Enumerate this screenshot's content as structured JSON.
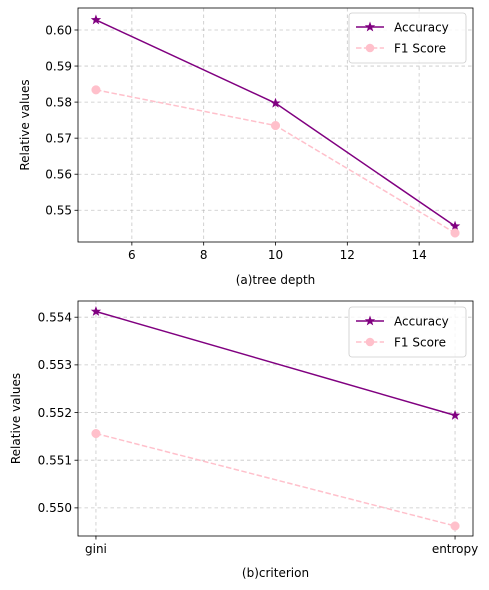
{
  "chart_data": [
    {
      "type": "line",
      "xlabel": "(a)tree depth",
      "ylabel": "Relative values",
      "x": [
        5,
        10,
        15
      ],
      "xlim": [
        4.5,
        15.5
      ],
      "ylim": [
        0.5412,
        0.6061
      ],
      "xticks": [
        6,
        8,
        10,
        12,
        14
      ],
      "yticks": [
        0.55,
        0.56,
        0.57,
        0.58,
        0.59,
        0.6
      ],
      "tick_labels_x": [
        "6",
        "8",
        "10",
        "12",
        "14"
      ],
      "tick_labels_y": [
        "0.55",
        "0.56",
        "0.57",
        "0.58",
        "0.59",
        "0.60"
      ],
      "grid": true,
      "legend_position": "top-right",
      "series": [
        {
          "name": "Accuracy",
          "values": [
            0.6028,
            0.5797,
            0.5456
          ],
          "color": "#800080",
          "marker": "star",
          "linestyle": "solid"
        },
        {
          "name": "F1 Score",
          "values": [
            0.5834,
            0.5735,
            0.5437
          ],
          "color": "#ffc0cb",
          "marker": "circle",
          "linestyle": "dashed"
        }
      ]
    },
    {
      "type": "line",
      "xlabel": "(b)criterion",
      "ylabel": "Relative values",
      "categories": [
        "gini",
        "entropy"
      ],
      "ylim": [
        0.54941,
        0.55434
      ],
      "yticks": [
        0.55,
        0.551,
        0.552,
        0.553,
        0.554
      ],
      "tick_labels_x": [
        "gini",
        "entropy"
      ],
      "tick_labels_y": [
        "0.550",
        "0.551",
        "0.552",
        "0.553",
        "0.554"
      ],
      "grid": true,
      "legend_position": "top-right",
      "series": [
        {
          "name": "Accuracy",
          "values": [
            0.55412,
            0.55194
          ],
          "color": "#800080",
          "marker": "star",
          "linestyle": "solid"
        },
        {
          "name": "F1 Score",
          "values": [
            0.55156,
            0.54962
          ],
          "color": "#ffc0cb",
          "marker": "circle",
          "linestyle": "dashed"
        }
      ]
    }
  ]
}
